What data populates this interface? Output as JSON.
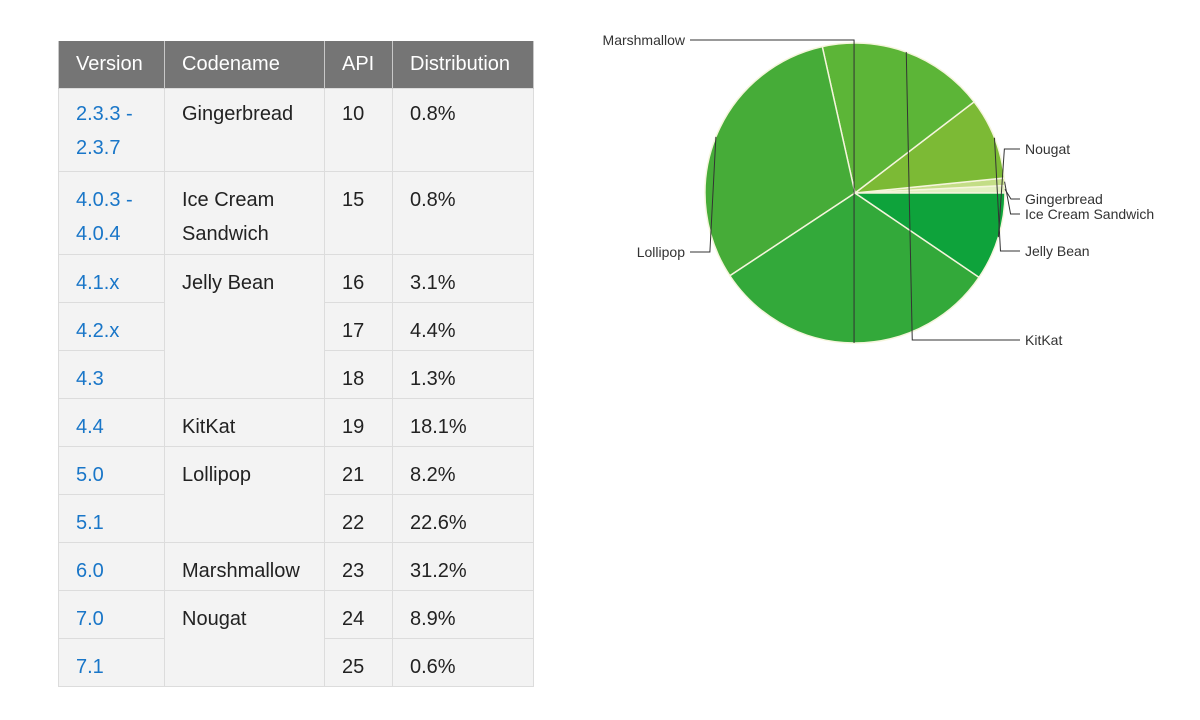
{
  "colors": {
    "header_bg": "#757575",
    "cell_bg": "#f3f3f3",
    "link": "#1976c8",
    "leader_line": "#333333",
    "slice_border": "#f5f5dc"
  },
  "table": {
    "headers": {
      "version": "Version",
      "codename": "Codename",
      "api": "API",
      "distribution": "Distribution"
    },
    "rows": [
      {
        "version": "2.3.3 - 2.3.7",
        "codename": "Gingerbread",
        "api": "10",
        "distribution": "0.8%"
      },
      {
        "version": "4.0.3 - 4.0.4",
        "codename": "Ice Cream Sandwich",
        "api": "15",
        "distribution": "0.8%"
      },
      {
        "version": "4.1.x",
        "codename": "Jelly Bean",
        "api": "16",
        "distribution": "3.1%"
      },
      {
        "version": "4.2.x",
        "codename": "",
        "api": "17",
        "distribution": "4.4%"
      },
      {
        "version": "4.3",
        "codename": "",
        "api": "18",
        "distribution": "1.3%"
      },
      {
        "version": "4.4",
        "codename": "KitKat",
        "api": "19",
        "distribution": "18.1%"
      },
      {
        "version": "5.0",
        "codename": "Lollipop",
        "api": "21",
        "distribution": "8.2%"
      },
      {
        "version": "5.1",
        "codename": "",
        "api": "22",
        "distribution": "22.6%"
      },
      {
        "version": "6.0",
        "codename": "Marshmallow",
        "api": "23",
        "distribution": "31.2%"
      },
      {
        "version": "7.0",
        "codename": "Nougat",
        "api": "24",
        "distribution": "8.9%"
      },
      {
        "version": "7.1",
        "codename": "",
        "api": "25",
        "distribution": "0.6%"
      }
    ]
  },
  "chart_data": {
    "type": "pie",
    "title": "",
    "start_angle_deg": 0,
    "direction": "counterclockwise",
    "slices": [
      {
        "label": "Gingerbread",
        "value": 0.8,
        "color": "#e3f0c0"
      },
      {
        "label": "Ice Cream Sandwich",
        "value": 0.8,
        "color": "#c3dd86"
      },
      {
        "label": "Jelly Bean",
        "value": 8.8,
        "color": "#7cba35"
      },
      {
        "label": "KitKat",
        "value": 18.1,
        "color": "#5cb537"
      },
      {
        "label": "Lollipop",
        "value": 30.8,
        "color": "#46ac38"
      },
      {
        "label": "Marshmallow",
        "value": 31.2,
        "color": "#33a93a"
      },
      {
        "label": "Nougat",
        "value": 9.5,
        "color": "#0ea33b"
      }
    ]
  }
}
